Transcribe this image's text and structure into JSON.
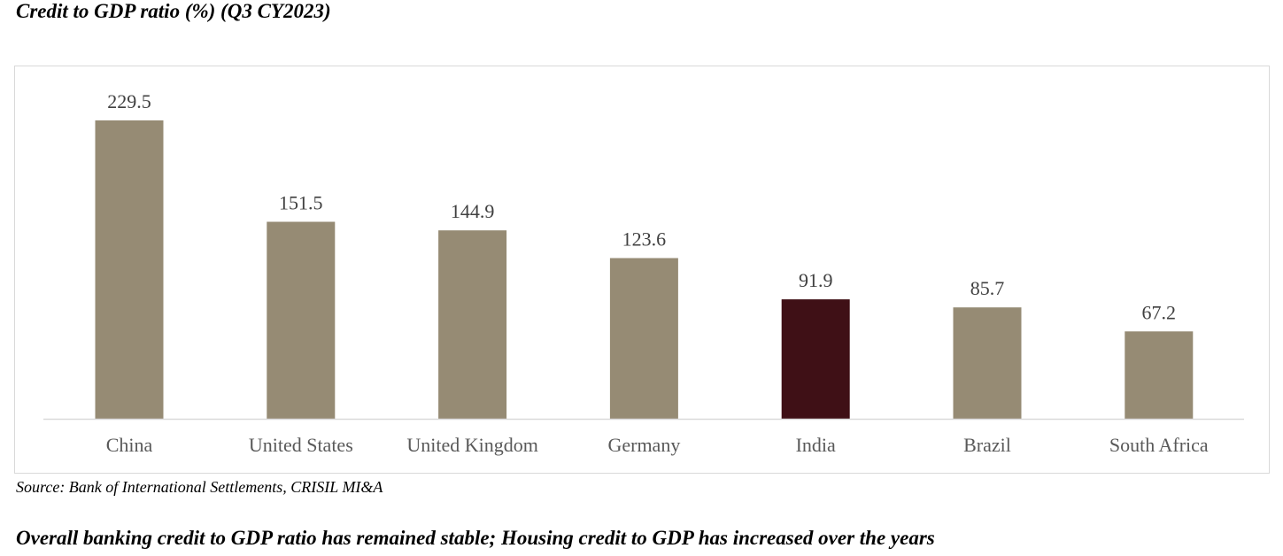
{
  "header": {
    "title": "Credit to GDP ratio (%) (Q3 CY2023)"
  },
  "footer": {
    "source": "Source: Bank of International Settlements, CRISIL MI&A",
    "subheading": "Overall banking credit to GDP ratio has remained stable; Housing credit to GDP has increased over the years"
  },
  "chart_data": {
    "type": "bar",
    "title": "Credit to GDP ratio (%) (Q3 CY2023)",
    "xlabel": "",
    "ylabel": "",
    "categories": [
      "China",
      "United States",
      "United Kingdom",
      "Germany",
      "India",
      "Brazil",
      "South Africa"
    ],
    "values": [
      229.5,
      151.5,
      144.9,
      123.6,
      91.9,
      85.7,
      67.2
    ],
    "ylim": [
      0,
      230
    ],
    "grid": false,
    "legend": "none",
    "data_labels": true,
    "colors": {
      "default": "#968b74",
      "highlight": "#3f1016",
      "highlight_category": "India"
    }
  }
}
